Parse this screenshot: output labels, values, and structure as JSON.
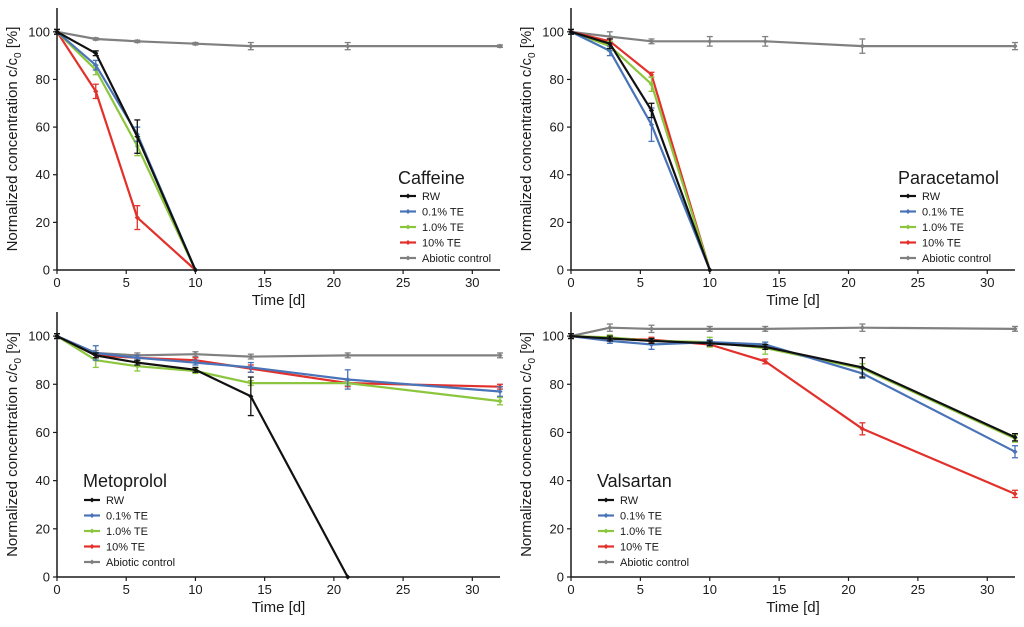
{
  "figure": {
    "description_series_order": [
      "RW",
      "0.1% TE",
      "1.0% TE",
      "10% TE",
      "Abiotic control"
    ]
  },
  "colors": {
    "RW": "#111111",
    "0.1% TE": "#4a74b8",
    "1.0% TE": "#8cc63e",
    "10% TE": "#e2302b",
    "Abiotic control": "#808080",
    "axis": "#1a1a1a"
  },
  "chart_data": [
    {
      "type": "line",
      "title": "Caffeine",
      "xlabel": "Time [d]",
      "ylabel_main": "Normalized concentration c/c",
      "ylabel_sub": "0",
      "ylabel_unit": " [%]",
      "xlim": [
        0,
        32
      ],
      "ylim": [
        0,
        110
      ],
      "xticks": [
        0,
        5,
        10,
        15,
        20,
        25,
        30
      ],
      "yticks": [
        0,
        20,
        40,
        60,
        80,
        100
      ],
      "legend_position": "lower-right",
      "series": [
        {
          "name": "RW",
          "x": [
            0,
            2.8,
            5.8,
            10
          ],
          "y": [
            100,
            91,
            56,
            0
          ],
          "err": [
            1,
            1,
            7,
            0
          ]
        },
        {
          "name": "0.1% TE",
          "x": [
            0,
            2.8,
            5.8,
            10
          ],
          "y": [
            100,
            86,
            57,
            0
          ],
          "err": [
            1,
            2,
            3,
            0
          ]
        },
        {
          "name": "1.0% TE",
          "x": [
            0,
            2.8,
            5.8,
            10
          ],
          "y": [
            100,
            84,
            52,
            0
          ],
          "err": [
            1,
            2,
            4,
            0
          ]
        },
        {
          "name": "10% TE",
          "x": [
            0,
            2.8,
            5.8,
            10
          ],
          "y": [
            100,
            75,
            22,
            0
          ],
          "err": [
            1,
            3,
            5,
            0
          ]
        },
        {
          "name": "Abiotic control",
          "x": [
            0,
            2.8,
            5.8,
            10,
            14,
            21,
            32
          ],
          "y": [
            100,
            97,
            96,
            95,
            94,
            94,
            94
          ],
          "err": [
            1,
            0.5,
            0.5,
            0.5,
            1.5,
            1.5,
            0.5
          ]
        }
      ]
    },
    {
      "type": "line",
      "title": "Paracetamol",
      "xlabel": "Time [d]",
      "ylabel_main": "Normalized concentration c/c",
      "ylabel_sub": "0",
      "ylabel_unit": " [%]",
      "xlim": [
        0,
        32
      ],
      "ylim": [
        0,
        110
      ],
      "xticks": [
        0,
        5,
        10,
        15,
        20,
        25,
        30
      ],
      "yticks": [
        0,
        20,
        40,
        60,
        80,
        100
      ],
      "legend_position": "lower-right",
      "series": [
        {
          "name": "RW",
          "x": [
            0,
            2.8,
            5.8,
            10
          ],
          "y": [
            100,
            95,
            67,
            0
          ],
          "err": [
            1,
            2,
            3,
            0
          ]
        },
        {
          "name": "0.1% TE",
          "x": [
            0,
            2.8,
            5.8,
            10
          ],
          "y": [
            100,
            92,
            61,
            0
          ],
          "err": [
            1,
            2,
            7,
            0
          ]
        },
        {
          "name": "1.0% TE",
          "x": [
            0,
            2.8,
            5.8,
            10
          ],
          "y": [
            100,
            94,
            78,
            0
          ],
          "err": [
            1,
            2,
            3,
            0
          ]
        },
        {
          "name": "10% TE",
          "x": [
            0,
            2.8,
            5.8,
            10
          ],
          "y": [
            100,
            96,
            82,
            0
          ],
          "err": [
            1,
            1,
            1,
            0
          ]
        },
        {
          "name": "Abiotic control",
          "x": [
            0,
            2.8,
            5.8,
            10,
            14,
            21,
            32
          ],
          "y": [
            100,
            98,
            96,
            96,
            96,
            94,
            94
          ],
          "err": [
            1,
            2,
            1,
            2,
            2,
            3,
            1.5
          ]
        }
      ]
    },
    {
      "type": "line",
      "title": "Metoprolol",
      "xlabel": "Time [d]",
      "ylabel_main": "Normalized concentration c/c",
      "ylabel_sub": "0",
      "ylabel_unit": " [%]",
      "xlim": [
        0,
        32
      ],
      "ylim": [
        0,
        110
      ],
      "xticks": [
        0,
        5,
        10,
        15,
        20,
        25,
        30
      ],
      "yticks": [
        0,
        20,
        40,
        60,
        80,
        100
      ],
      "legend_position": "lower-left",
      "series": [
        {
          "name": "RW",
          "x": [
            0,
            2.8,
            5.8,
            10,
            14,
            21
          ],
          "y": [
            100,
            92,
            89,
            86,
            75,
            0
          ],
          "err": [
            1,
            1,
            1,
            1,
            8,
            0
          ]
        },
        {
          "name": "0.1% TE",
          "x": [
            0,
            2.8,
            5.8,
            10,
            14,
            21,
            32
          ],
          "y": [
            100,
            93,
            91,
            89,
            87,
            82,
            77
          ],
          "err": [
            1,
            3,
            1,
            1,
            2,
            4,
            2
          ]
        },
        {
          "name": "1.0% TE",
          "x": [
            0,
            2.8,
            5.8,
            10,
            14,
            21,
            32
          ],
          "y": [
            100,
            90,
            87.5,
            85.5,
            80.5,
            80.5,
            73
          ],
          "err": [
            1,
            3,
            2,
            1,
            1,
            1,
            1.5
          ]
        },
        {
          "name": "10% TE",
          "x": [
            0,
            2.8,
            5.8,
            10,
            14,
            21,
            32
          ],
          "y": [
            100,
            92,
            91,
            90,
            86.5,
            80.5,
            79
          ],
          "err": [
            1,
            1,
            1,
            1,
            1.5,
            1.5,
            1
          ]
        },
        {
          "name": "Abiotic control",
          "x": [
            0,
            2.8,
            5.8,
            10,
            14,
            21,
            32
          ],
          "y": [
            100,
            93,
            92,
            92.5,
            91.5,
            92,
            92
          ],
          "err": [
            1,
            1,
            1,
            1,
            1,
            1,
            1
          ]
        }
      ]
    },
    {
      "type": "line",
      "title": "Valsartan",
      "xlabel": "Time [d]",
      "ylabel_main": "Normalized concentration c/c",
      "ylabel_sub": "0",
      "ylabel_unit": " [%]",
      "xlim": [
        0,
        32
      ],
      "ylim": [
        0,
        110
      ],
      "xticks": [
        0,
        5,
        10,
        15,
        20,
        25,
        30
      ],
      "yticks": [
        0,
        20,
        40,
        60,
        80,
        100
      ],
      "legend_position": "lower-left",
      "series": [
        {
          "name": "RW",
          "x": [
            0,
            2.8,
            5.8,
            10,
            14,
            21,
            32
          ],
          "y": [
            100,
            99,
            98,
            97,
            95.5,
            87,
            58
          ],
          "err": [
            1,
            1,
            1,
            1,
            1,
            4,
            1.5
          ]
        },
        {
          "name": "0.1% TE",
          "x": [
            0,
            2.8,
            5.8,
            10,
            14,
            21,
            32
          ],
          "y": [
            100,
            98,
            96.5,
            97.5,
            96.5,
            84.5,
            52
          ],
          "err": [
            1,
            1,
            2,
            1,
            1,
            2,
            2.5
          ]
        },
        {
          "name": "1.0% TE",
          "x": [
            0,
            2.8,
            5.8,
            10,
            14,
            21,
            32
          ],
          "y": [
            100,
            99.5,
            98,
            97.5,
            95,
            86.5,
            57.5
          ],
          "err": [
            1,
            1,
            1,
            2,
            2.5,
            2,
            1.5
          ]
        },
        {
          "name": "10% TE",
          "x": [
            0,
            2.8,
            5.8,
            10,
            14,
            21,
            32
          ],
          "y": [
            100,
            99,
            98.5,
            96.5,
            89.5,
            61.5,
            34.5
          ],
          "err": [
            1,
            1,
            1,
            1,
            1,
            2.5,
            1.5
          ]
        },
        {
          "name": "Abiotic control",
          "x": [
            0,
            2.8,
            5.8,
            10,
            14,
            21,
            32
          ],
          "y": [
            100,
            103.5,
            103,
            103,
            103,
            103.5,
            103
          ],
          "err": [
            1,
            1.5,
            1.5,
            1,
            1,
            1.5,
            1
          ]
        }
      ]
    }
  ]
}
